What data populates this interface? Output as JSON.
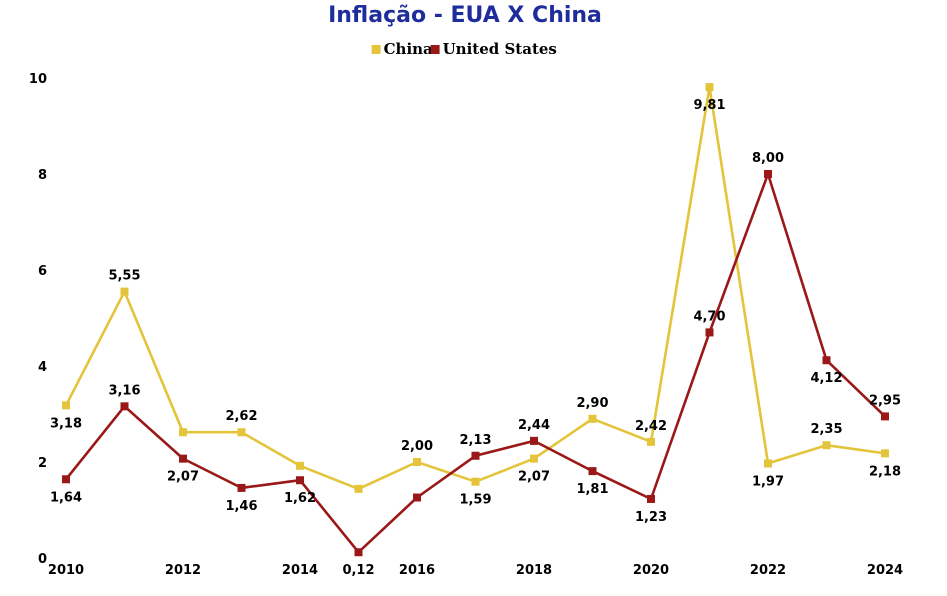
{
  "chart_data": {
    "type": "line",
    "title": "Inflação - EUA X China",
    "x": [
      2010,
      2011,
      2012,
      2013,
      2014,
      2015,
      2016,
      2017,
      2018,
      2019,
      2020,
      2021,
      2022,
      2023,
      2024
    ],
    "xticks": [
      "2010",
      "2012",
      "2014",
      "2016",
      "2018",
      "2020",
      "2022",
      "2024"
    ],
    "yticks": [
      "0",
      "2",
      "4",
      "6",
      "8",
      "10"
    ],
    "ylim": [
      0,
      10
    ],
    "legend_position": "top-center",
    "grid": false,
    "series": [
      {
        "name": "China",
        "color": "#e3c43a",
        "values": [
          3.18,
          5.55,
          2.62,
          2.62,
          1.92,
          1.44,
          2.0,
          1.59,
          2.07,
          2.9,
          2.42,
          9.81,
          1.97,
          2.35,
          2.18
        ],
        "labels": [
          "3,18",
          "5,55",
          "",
          "2,62",
          "",
          "",
          "2,00",
          "1,59",
          "2,07",
          "2,90",
          "2,42",
          "9,81",
          "1,97",
          "2,35",
          "2,18"
        ]
      },
      {
        "name": "United States",
        "color": "#9b1818",
        "values": [
          1.64,
          3.16,
          2.07,
          1.46,
          1.62,
          0.12,
          1.26,
          2.13,
          2.44,
          1.81,
          1.23,
          4.7,
          8.0,
          4.12,
          2.95
        ],
        "labels": [
          "1,64",
          "3,16",
          "2,07",
          "1,46",
          "1,62",
          "0,12",
          "",
          "2,13",
          "2,44",
          "1,81",
          "1,23",
          "4,70",
          "8,00",
          "4,12",
          "2,95"
        ]
      }
    ]
  },
  "colors": {
    "title": "#1f2d9c"
  }
}
